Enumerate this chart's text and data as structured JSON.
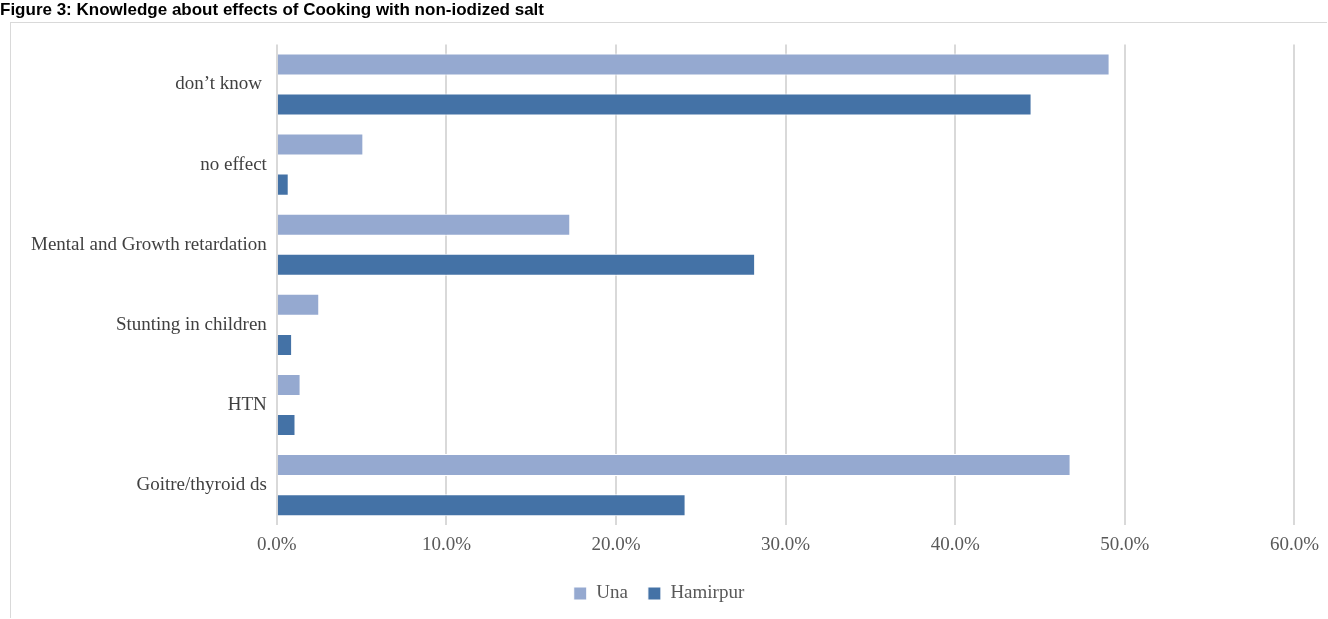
{
  "chart_data": {
    "type": "bar",
    "orientation": "horizontal",
    "title": "Figure 3: Knowledge about effects of Cooking with non-iodized salt",
    "categories": [
      "don’t know ",
      "no effect",
      "Mental and Growth retardation",
      "Stunting in children",
      "HTN",
      "Goitre/thyroid ds"
    ],
    "series": [
      {
        "name": "Una",
        "color": "#95a9d0",
        "values": [
          49.1,
          5.1,
          17.3,
          2.5,
          1.4,
          46.8
        ]
      },
      {
        "name": "Hamirpur",
        "color": "#4472a6",
        "values": [
          44.5,
          0.7,
          28.2,
          0.9,
          1.1,
          24.1
        ]
      }
    ],
    "xlim": [
      0,
      60
    ],
    "xticks": [
      {
        "value": 0,
        "label": "0.0%"
      },
      {
        "value": 10,
        "label": "10.0%"
      },
      {
        "value": 20,
        "label": "20.0%"
      },
      {
        "value": 30,
        "label": "30.0%"
      },
      {
        "value": 40,
        "label": "40.0%"
      },
      {
        "value": 50,
        "label": "50.0%"
      },
      {
        "value": 60,
        "label": "60.0%"
      }
    ],
    "grid": "x",
    "legend": "bottom"
  }
}
